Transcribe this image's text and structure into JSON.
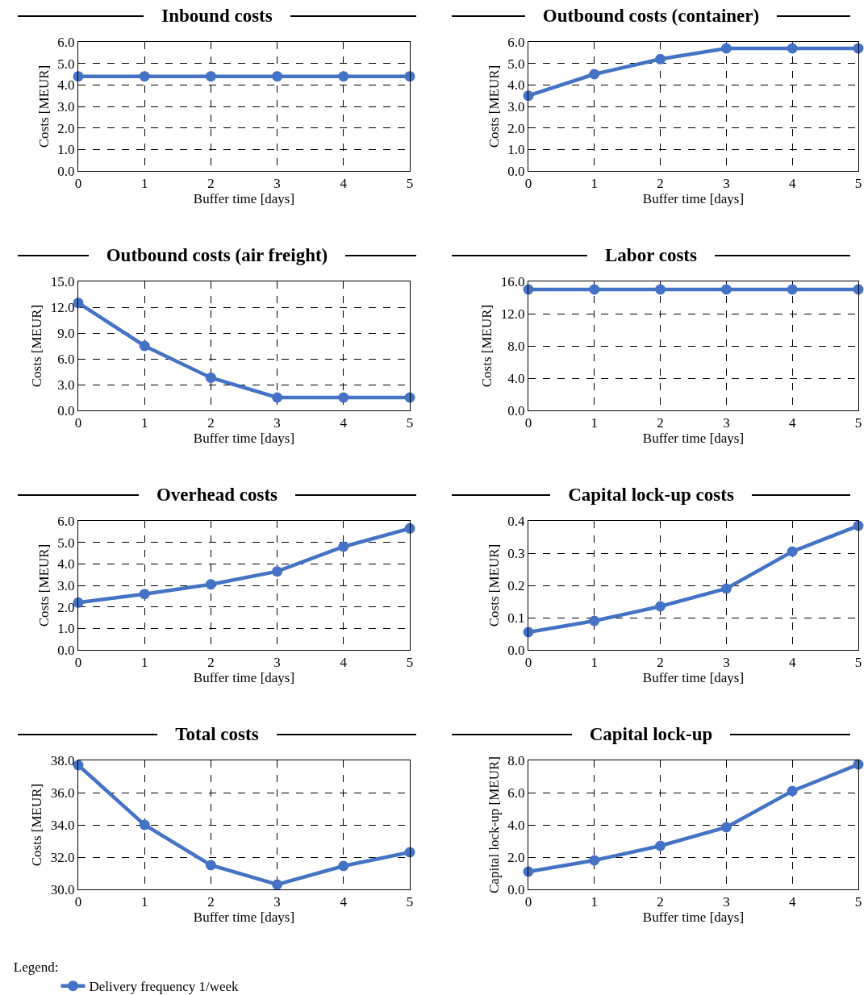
{
  "chart_data": [
    {
      "type": "line",
      "title": "Inbound costs",
      "xlabel": "Buffer time [days]",
      "ylabel": "Costs [MEUR]",
      "x": [
        0,
        1,
        2,
        3,
        4,
        5
      ],
      "xlim": [
        0,
        5
      ],
      "xticks": [
        0,
        1,
        2,
        3,
        4,
        5
      ],
      "ylim": [
        0,
        6
      ],
      "yticks": [
        {
          "value": 0,
          "label": "0.0"
        },
        {
          "value": 1,
          "label": "1.0"
        },
        {
          "value": 2,
          "label": "2.0"
        },
        {
          "value": 3,
          "label": "3.0"
        },
        {
          "value": 4,
          "label": "4.0"
        },
        {
          "value": 5,
          "label": "5.0"
        },
        {
          "value": 6,
          "label": "6.0"
        }
      ],
      "grid": true,
      "marker": "circle",
      "line_style": "solid",
      "series": [
        {
          "color": "#4472c4",
          "values": [
            4.4,
            4.4,
            4.4,
            4.4,
            4.4,
            4.4
          ]
        }
      ]
    },
    {
      "type": "line",
      "title": "Outbound costs (container)",
      "xlabel": "Buffer time [days]",
      "ylabel": "Costs [MEUR]",
      "x": [
        0,
        1,
        2,
        3,
        4,
        5
      ],
      "xlim": [
        0,
        5
      ],
      "xticks": [
        0,
        1,
        2,
        3,
        4,
        5
      ],
      "ylim": [
        0,
        6
      ],
      "yticks": [
        {
          "value": 0,
          "label": "0.0"
        },
        {
          "value": 1,
          "label": "1.0"
        },
        {
          "value": 2,
          "label": "2.0"
        },
        {
          "value": 3,
          "label": "3.0"
        },
        {
          "value": 4,
          "label": "4.0"
        },
        {
          "value": 5,
          "label": "5.0"
        },
        {
          "value": 6,
          "label": "6.0"
        }
      ],
      "grid": true,
      "marker": "circle",
      "line_style": "solid",
      "series": [
        {
          "color": "#4472c4",
          "values": [
            3.5,
            4.5,
            5.2,
            5.7,
            5.7,
            5.7
          ]
        }
      ]
    },
    {
      "type": "line",
      "title": "Outbound costs (air freight)",
      "xlabel": "Buffer time [days]",
      "ylabel": "Costs [MEUR]",
      "x": [
        0,
        1,
        2,
        3,
        4,
        5
      ],
      "xlim": [
        0,
        5
      ],
      "xticks": [
        0,
        1,
        2,
        3,
        4,
        5
      ],
      "ylim": [
        0,
        15
      ],
      "yticks": [
        {
          "value": 0,
          "label": "0.0"
        },
        {
          "value": 3,
          "label": "3.0"
        },
        {
          "value": 6,
          "label": "6.0"
        },
        {
          "value": 9,
          "label": "9.0"
        },
        {
          "value": 12,
          "label": "12.0"
        },
        {
          "value": 15,
          "label": "15.0"
        }
      ],
      "grid": true,
      "marker": "circle",
      "line_style": "solid",
      "series": [
        {
          "color": "#4472c4",
          "values": [
            12.5,
            7.5,
            3.8,
            1.5,
            1.5,
            1.5
          ]
        }
      ]
    },
    {
      "type": "line",
      "title": "Labor costs",
      "xlabel": "Buffer time [days]",
      "ylabel": "Costs [MEUR]",
      "x": [
        0,
        1,
        2,
        3,
        4,
        5
      ],
      "xlim": [
        0,
        5
      ],
      "xticks": [
        0,
        1,
        2,
        3,
        4,
        5
      ],
      "ylim": [
        0,
        16
      ],
      "yticks": [
        {
          "value": 0,
          "label": "0.0"
        },
        {
          "value": 4,
          "label": "4.0"
        },
        {
          "value": 8,
          "label": "8.0"
        },
        {
          "value": 12,
          "label": "12.0"
        },
        {
          "value": 16,
          "label": "16.0"
        }
      ],
      "grid": true,
      "marker": "circle",
      "line_style": "solid",
      "series": [
        {
          "color": "#4472c4",
          "values": [
            15.0,
            15.0,
            15.0,
            15.0,
            15.0,
            15.0
          ]
        }
      ]
    },
    {
      "type": "line",
      "title": "Overhead costs",
      "xlabel": "Buffer time [days]",
      "ylabel": "Costs [MEUR]",
      "x": [
        0,
        1,
        2,
        3,
        4,
        5
      ],
      "xlim": [
        0,
        5
      ],
      "xticks": [
        0,
        1,
        2,
        3,
        4,
        5
      ],
      "ylim": [
        0,
        6
      ],
      "yticks": [
        {
          "value": 0,
          "label": "0.0"
        },
        {
          "value": 1,
          "label": "1.0"
        },
        {
          "value": 2,
          "label": "2.0"
        },
        {
          "value": 3,
          "label": "3.0"
        },
        {
          "value": 4,
          "label": "4.0"
        },
        {
          "value": 5,
          "label": "5.0"
        },
        {
          "value": 6,
          "label": "6.0"
        }
      ],
      "grid": true,
      "marker": "circle",
      "line_style": "solid",
      "series": [
        {
          "color": "#4472c4",
          "values": [
            2.2,
            2.6,
            3.05,
            3.65,
            4.8,
            5.65
          ]
        }
      ]
    },
    {
      "type": "line",
      "title": "Capital lock-up costs",
      "xlabel": "Buffer time [days]",
      "ylabel": "Costs [MEUR]",
      "x": [
        0,
        1,
        2,
        3,
        4,
        5
      ],
      "xlim": [
        0,
        5
      ],
      "xticks": [
        0,
        1,
        2,
        3,
        4,
        5
      ],
      "ylim": [
        0,
        0.4
      ],
      "yticks": [
        {
          "value": 0,
          "label": "0.0"
        },
        0.1,
        0.2,
        0.3,
        0.4
      ],
      "grid": true,
      "marker": "circle",
      "line_style": "solid",
      "series": [
        {
          "color": "#4472c4",
          "values": [
            0.055,
            0.09,
            0.135,
            0.19,
            0.305,
            0.385
          ]
        }
      ]
    },
    {
      "type": "line",
      "title": "Total costs",
      "xlabel": "Buffer time [days]",
      "ylabel": "Costs [MEUR]",
      "x": [
        0,
        1,
        2,
        3,
        4,
        5
      ],
      "xlim": [
        0,
        5
      ],
      "xticks": [
        0,
        1,
        2,
        3,
        4,
        5
      ],
      "ylim": [
        30,
        38
      ],
      "yticks": [
        {
          "value": 30,
          "label": "30.0"
        },
        {
          "value": 32,
          "label": "32.0"
        },
        {
          "value": 34,
          "label": "34.0"
        },
        {
          "value": 36,
          "label": "36.0"
        },
        {
          "value": 38,
          "label": "38.0"
        }
      ],
      "grid": true,
      "marker": "circle",
      "line_style": "solid",
      "legend": "bottom left",
      "legend_title": "Legend:",
      "series": [
        {
          "name": "Delivery frequency 1/week",
          "color": "#4472c4",
          "values": [
            37.7,
            34.0,
            31.5,
            30.3,
            31.45,
            32.3
          ]
        }
      ]
    },
    {
      "type": "line",
      "title": "Capital lock-up",
      "xlabel": "Buffer time [days]",
      "ylabel": "Capital lock-up [MEUR]",
      "x": [
        0,
        1,
        2,
        3,
        4,
        5
      ],
      "xlim": [
        0,
        5
      ],
      "xticks": [
        0,
        1,
        2,
        3,
        4,
        5
      ],
      "ylim": [
        0,
        8
      ],
      "yticks": [
        {
          "value": 0,
          "label": "0.0"
        },
        {
          "value": 2,
          "label": "2.0"
        },
        {
          "value": 4,
          "label": "4.0"
        },
        {
          "value": 6,
          "label": "6.0"
        },
        {
          "value": 8,
          "label": "8.0"
        }
      ],
      "grid": true,
      "marker": "circle",
      "line_style": "solid",
      "series": [
        {
          "color": "#4472c4",
          "values": [
            1.1,
            1.8,
            2.7,
            3.85,
            6.1,
            7.75
          ]
        }
      ]
    }
  ]
}
